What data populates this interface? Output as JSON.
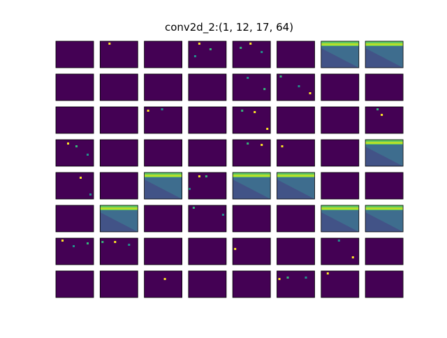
{
  "chart_data": {
    "type": "image-grid",
    "title": "conv2d_2:(1, 12, 17, 64)"
  }
}
